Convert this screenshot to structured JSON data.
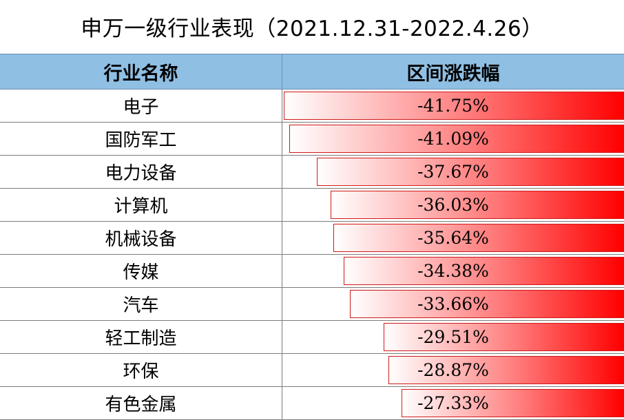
{
  "title": "申万一级行业表现（2021.12.31-2022.4.26）",
  "header": {
    "col1": "行业名称",
    "col2": "区间涨跌幅"
  },
  "colors": {
    "header_bg": "#8fbfe3",
    "bar_start": "#ffffff",
    "bar_end": "#ff0000"
  },
  "chart_data": {
    "type": "table",
    "title": "申万一级行业表现（2021.12.31-2022.4.26）",
    "columns": [
      "行业名称",
      "区间涨跌幅"
    ],
    "categories": [
      "电子",
      "国防军工",
      "电力设备",
      "计算机",
      "机械设备",
      "传媒",
      "汽车",
      "轻工制造",
      "环保",
      "有色金属"
    ],
    "values": [
      -41.75,
      -41.09,
      -37.67,
      -36.03,
      -35.64,
      -34.38,
      -33.66,
      -29.51,
      -28.87,
      -27.33
    ],
    "labels": [
      "-41.75%",
      "-41.09%",
      "-37.67%",
      "-36.03%",
      "-35.64%",
      "-34.38%",
      "-33.66%",
      "-29.51%",
      "-28.87%",
      "-27.33%"
    ]
  }
}
